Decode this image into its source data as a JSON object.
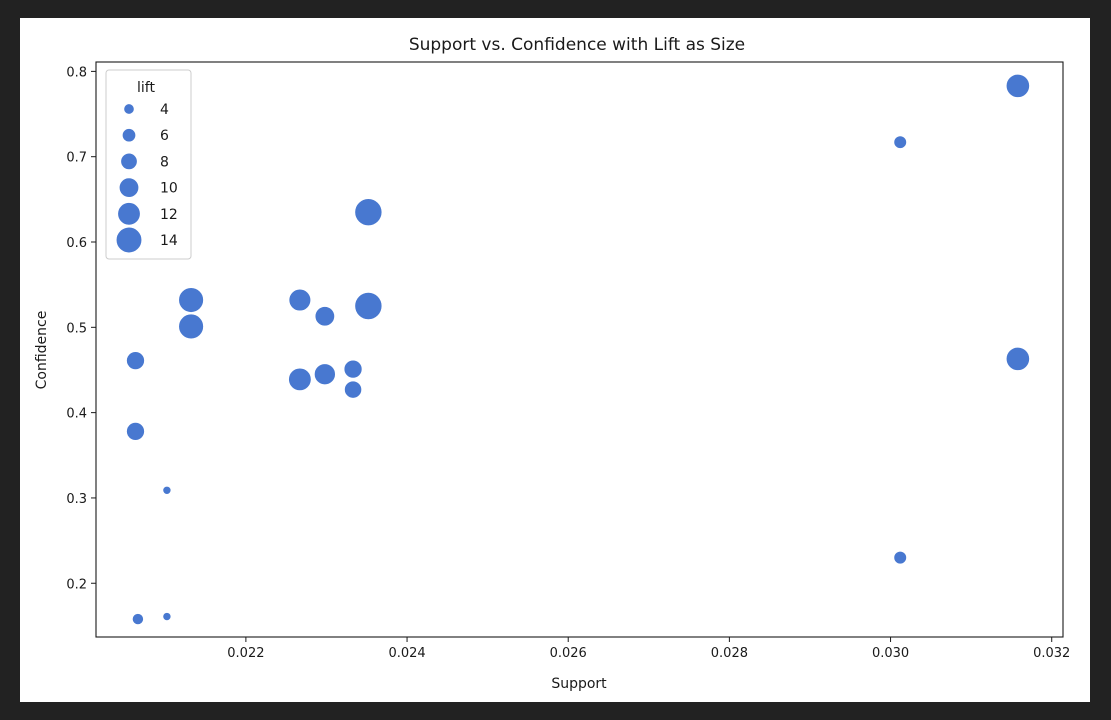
{
  "chart_data": {
    "type": "scatter",
    "title": "Support vs. Confidence with Lift as Size",
    "xlabel": "Support",
    "ylabel": "Confidence",
    "xlim": [
      0.02014,
      0.03214
    ],
    "ylim": [
      0.137,
      0.811
    ],
    "xticks": [
      0.022,
      0.024,
      0.026,
      0.028,
      0.03,
      0.032
    ],
    "xtick_labels": [
      "0.022",
      "0.024",
      "0.026",
      "0.028",
      "0.030",
      "0.032"
    ],
    "yticks": [
      0.2,
      0.3,
      0.4,
      0.5,
      0.6,
      0.7,
      0.8
    ],
    "ytick_labels": [
      "0.2",
      "0.3",
      "0.4",
      "0.5",
      "0.6",
      "0.7",
      "0.8"
    ],
    "grid": false,
    "point_color": "#4878d0",
    "size_variable": "lift",
    "legend": {
      "title": "lift",
      "location": "upper-left",
      "entries": [
        {
          "label": "4",
          "value": 4
        },
        {
          "label": "6",
          "value": 6
        },
        {
          "label": "8",
          "value": 8
        },
        {
          "label": "10",
          "value": 10
        },
        {
          "label": "12",
          "value": 12
        },
        {
          "label": "14",
          "value": 14
        }
      ]
    },
    "points": [
      {
        "x": 0.03158,
        "y": 0.783,
        "lift": 12.5
      },
      {
        "x": 0.03012,
        "y": 0.717,
        "lift": 5.5
      },
      {
        "x": 0.02352,
        "y": 0.635,
        "lift": 15.0
      },
      {
        "x": 0.02132,
        "y": 0.532,
        "lift": 13.5
      },
      {
        "x": 0.02267,
        "y": 0.532,
        "lift": 11.5
      },
      {
        "x": 0.02352,
        "y": 0.525,
        "lift": 15.0
      },
      {
        "x": 0.02298,
        "y": 0.513,
        "lift": 10.0
      },
      {
        "x": 0.02132,
        "y": 0.501,
        "lift": 13.5
      },
      {
        "x": 0.03158,
        "y": 0.463,
        "lift": 12.5
      },
      {
        "x": 0.02063,
        "y": 0.461,
        "lift": 9.0
      },
      {
        "x": 0.02333,
        "y": 0.451,
        "lift": 9.0
      },
      {
        "x": 0.02298,
        "y": 0.445,
        "lift": 11.0
      },
      {
        "x": 0.02267,
        "y": 0.439,
        "lift": 12.0
      },
      {
        "x": 0.02333,
        "y": 0.427,
        "lift": 8.5
      },
      {
        "x": 0.02063,
        "y": 0.378,
        "lift": 9.0
      },
      {
        "x": 0.02102,
        "y": 0.309,
        "lift": 2.5
      },
      {
        "x": 0.03012,
        "y": 0.23,
        "lift": 5.5
      },
      {
        "x": 0.02102,
        "y": 0.161,
        "lift": 2.5
      },
      {
        "x": 0.02066,
        "y": 0.158,
        "lift": 4.5
      }
    ]
  }
}
